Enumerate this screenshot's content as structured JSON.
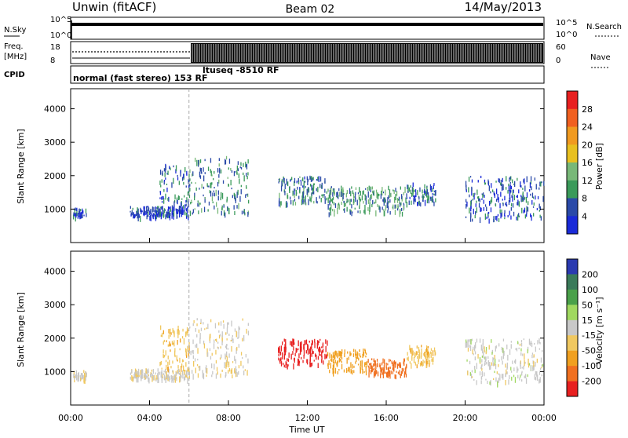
{
  "header": {
    "station": "Unwin (fitACF)",
    "beam": "Beam 02",
    "date": "14/May/2013"
  },
  "strips": {
    "nsky_label": "N.Sky",
    "noise_ticks_left": [
      "10^5",
      "10^0"
    ],
    "noise_ticks_right": [
      "10^5",
      "10^0"
    ],
    "nsearch_label": "N.Search",
    "freq_label": "Freq.",
    "freq_unit": "[MHz]",
    "freq_ticks": [
      "18",
      "8"
    ],
    "nave_ticks": [
      "60",
      "0"
    ],
    "nave_label": "Nave",
    "cpid_label": "CPID",
    "cpid_1": "normal (fast stereo) 153 RF",
    "cpid_2": "ltuseq -8510 RF"
  },
  "time_axis": {
    "label": "Time UT",
    "ticks": [
      "00:00",
      "04:00",
      "08:00",
      "12:00",
      "16:00",
      "20:00",
      "00:00"
    ],
    "tick_hours": [
      0,
      4,
      8,
      12,
      16,
      20,
      24
    ],
    "mode_change_hour": 6.0
  },
  "power_scale": {
    "label": "Power [dB]",
    "ticks": [
      "28",
      "24",
      "20",
      "16",
      "12",
      "8",
      "4"
    ],
    "colors": [
      "#e82020",
      "#f06020",
      "#f09a20",
      "#e8c020",
      "#78b878",
      "#3a9a5a",
      "#2a4aa8",
      "#1a2ad8"
    ]
  },
  "velocity_scale": {
    "label": "Velocity [m s⁻¹]",
    "ticks": [
      "200",
      "100",
      "50",
      "15",
      "-15",
      "-50",
      "-100",
      "-200"
    ],
    "colors": [
      "#2a3ab0",
      "#3a7a5a",
      "#4aa04a",
      "#a0d860",
      "#c8c8c8",
      "#f0c860",
      "#f0a020",
      "#f07020",
      "#e82020"
    ]
  },
  "chart_data": [
    {
      "type": "heatmap",
      "title": "",
      "xlabel": "",
      "ylabel": "Slant Range [km]",
      "xlim": [
        0,
        24
      ],
      "ylim": [
        0,
        4600
      ],
      "yticks": [
        1000,
        2000,
        3000,
        4000
      ],
      "colorbar": "Power [dB]",
      "echo_regions": [
        {
          "t_start": 0.1,
          "t_end": 0.8,
          "range_min": 800,
          "range_max": 1050,
          "value": 6
        },
        {
          "t_start": 3.0,
          "t_end": 6.0,
          "range_min": 800,
          "range_max": 1100,
          "value": 5
        },
        {
          "t_start": 4.5,
          "t_end": 6.0,
          "range_min": 1100,
          "range_max": 2400,
          "value": 6
        },
        {
          "t_start": 6.0,
          "t_end": 9.0,
          "range_min": 900,
          "range_max": 2600,
          "value": 9
        },
        {
          "t_start": 10.5,
          "t_end": 13.0,
          "range_min": 1200,
          "range_max": 2000,
          "value": 8
        },
        {
          "t_start": 13.0,
          "t_end": 17.0,
          "range_min": 900,
          "range_max": 1700,
          "value": 10
        },
        {
          "t_start": 17.0,
          "t_end": 18.5,
          "range_min": 1200,
          "range_max": 1800,
          "value": 6
        },
        {
          "t_start": 20.0,
          "t_end": 24.0,
          "range_min": 700,
          "range_max": 2000,
          "value": 6
        }
      ]
    },
    {
      "type": "heatmap",
      "title": "",
      "xlabel": "Time UT",
      "ylabel": "Slant Range [km]",
      "xlim": [
        0,
        24
      ],
      "ylim": [
        0,
        4600
      ],
      "yticks": [
        1000,
        2000,
        3000,
        4000
      ],
      "colorbar": "Velocity [m s⁻¹]",
      "echo_regions": [
        {
          "t_start": 0.1,
          "t_end": 0.8,
          "range_min": 800,
          "range_max": 1050,
          "value": -10
        },
        {
          "t_start": 3.0,
          "t_end": 6.0,
          "range_min": 800,
          "range_max": 1100,
          "value": -5
        },
        {
          "t_start": 4.5,
          "t_end": 6.0,
          "range_min": 1100,
          "range_max": 2400,
          "value": -40
        },
        {
          "t_start": 6.0,
          "t_end": 9.0,
          "range_min": 900,
          "range_max": 2600,
          "value": -10
        },
        {
          "t_start": 10.5,
          "t_end": 13.0,
          "range_min": 1200,
          "range_max": 2000,
          "value": -220
        },
        {
          "t_start": 13.0,
          "t_end": 15.0,
          "range_min": 1000,
          "range_max": 1700,
          "value": -70
        },
        {
          "t_start": 15.0,
          "t_end": 17.0,
          "range_min": 900,
          "range_max": 1400,
          "value": -120
        },
        {
          "t_start": 17.0,
          "t_end": 18.5,
          "range_min": 1200,
          "range_max": 1800,
          "value": -40
        },
        {
          "t_start": 20.0,
          "t_end": 24.0,
          "range_min": 700,
          "range_max": 2000,
          "value": 0
        }
      ]
    }
  ]
}
